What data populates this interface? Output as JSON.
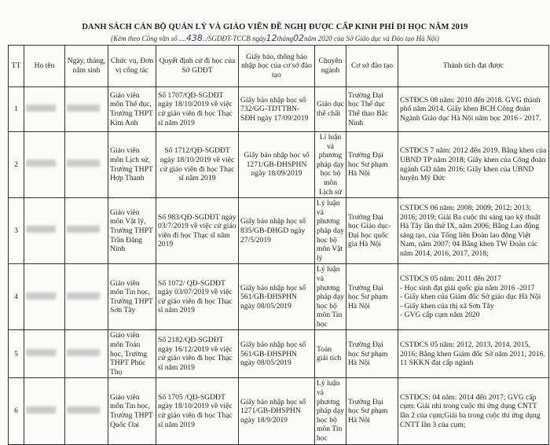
{
  "title": "DANH SÁCH CÁN BỘ QUẢN LÝ VÀ GIÁO VIÊN ĐỀ NGHỊ ĐƯỢC CẤP KINH PHÍ ĐI HỌC NĂM 2019",
  "subtitle": {
    "prefix": "(Kèm theo Công văn số ....",
    "number": "438",
    "mid1": "../SGDĐT-TCCB ngày",
    "day": "12",
    "mid2": "tháng",
    "month": "02",
    "suffix": "năm 2020 của Sở Giáo dục và Đào tạo Hà Nội)"
  },
  "headers": [
    "TT",
    "Họ tên",
    "Ngày, tháng, năm sinh",
    "Chức vụ, Đơn vị công tác",
    "Quyết định cử đi học của Sở GDĐT",
    "Giấy báo, thông báo nhập học của cơ sở đào tạo",
    "Chuyên ngành",
    "Cơ sở đào tạo",
    "Thành tích đạt được"
  ],
  "rows": [
    {
      "tt": "1",
      "position": "Giáo viên môn Thể dục, Trường THPT Kim Anh",
      "decision": "Số 1707/QĐ-SGDĐT ngày 18/10/2019 về việc cử giáo viên đi học Thạc sĩ năm 2019",
      "notice": "Giấy báo nhập học số 732/GG-TDTTBN-SĐH ngày 17/09/2019",
      "major": "Giáo dục thể chất",
      "school": "Trường Đại học Thể dục Thể thao Bắc Ninh",
      "achievements": "CSTĐCS 08 năm: 2010 đến 2018. GVG thành phố năm 2014. Giấy khen BCH Công đoàn Ngành Giáo dục Hà Nội năm học 2016 - 2017."
    },
    {
      "tt": "2",
      "position": "Giáo viên môn Lịch sử, Trường THPT Hợp Thanh",
      "decision": "Số 1712/QĐ-SGDĐT ngày 18/10/2019 về việc cử giáo viên đi học Thạc sĩ năm 2019",
      "notice": "Giấy báo nhập học số 1271/GB-ĐHSPHN ngày 18/09/2019",
      "major": "Lí luận và phương pháp dạy học bộ môn Lịch sử",
      "school": "Trường Đại học Sư phạm Hà Nội",
      "achievements": "CSTĐCS 7 năm: 2012 đến 2019. Bằng khen của UBND TP năm 2018; Giấy khen của Công đoàn ngành GD năm 2016; Giấy khen của UBND huyện Mỹ Đức"
    },
    {
      "tt": "3",
      "position": "Giáo viên môn Vật lý, Trường THPT Trần Đăng Ninh",
      "decision": "Số 983/QĐ-SGDĐT ngày 03/7/2019 về việc cử giáo viên đi học Thạc sĩ năm 2019",
      "notice": "Giấy báo nhập học số 835/GB-ĐHGD ngày 27/5/2019",
      "major": "Lý luận và phương pháp dạy học bộ môn Vật lý",
      "school": "Trường Đại học Giáo dục- Đại học quốc gia Hà Nội",
      "achievements": "CSTĐCS 06 năm: 2008; 2009; 2012; 2013; 2016; 2019; Giải Ba cuộc thi sáng tạo kỹ thuật Hà Tây lần thứ IX, năm 2006; Bằng Lao động sáng tạo, của Tổng liên Đoàn lao động Việt Nam, năm 2007; 04 Bằng khen TW Đoàn các năm 2014, 2016, 2017, 2018;"
    },
    {
      "tt": "4",
      "position": "Giáo viên môn Tin học, Trường THPT Sơn Tây",
      "decision": "Số 1072/ QĐ-SGDĐT ngày 03/07/2019 về việc cử giáo viên đi học Thạc sĩ năm 2019",
      "notice": "Giấy báo nhập học số 561/GB-ĐHSPHN ngày 08/05/2019",
      "major": "Lý luận và phương pháp dạy học bộ môn Tin học",
      "school": "Trường Đại học Sư phạm Hà Nội",
      "achievements": [
        "CSTĐCS 05 năm: 2011 đến 2017",
        "- Học sinh đạt giải quốc gia năm 2016 -2017",
        "- Giấy khen của Giám đốc Sở giáo dục Hà Nội",
        "- Giấy khen của thị xã Sơn Tây",
        "- GVG cấp cụm năm 2020"
      ]
    },
    {
      "tt": "5",
      "position": "Giáo viên môn Toán học, Trường THPT Phúc Thọ",
      "decision": "Số 2182/QĐ-SGDĐT ngày 16/12/2019 về việc cử giáo viên đi học Thạc sĩ năm 2019",
      "notice": "Giấy báo nhập học số 561/GB-ĐHSPHN ngày 08/05/2019",
      "major": "Toán giải tích",
      "school": "Trường Đại học Sư phạm Hà Nội",
      "achievements": "CSTĐCS 05 năm: 2012, 2013, 2014, 2015, 2016; Bằng khen Giám đốc Sở năm 2011, 2016. 11 SKKN đạt cấp ngành"
    },
    {
      "tt": "6",
      "position": "Giáo viên môn Tin học, Trường THPT Quốc Oai",
      "decision": "Số 1705 /QĐ-SGDĐT ngày 18/10/2019 về việc cử giáo viên đi học Thạc sĩ năm 2019",
      "notice": "Giấy báo nhập học số 1271/GB-ĐHSPHN ngày 18/9/2019",
      "major": "Lý luận và phương pháp dạy học bộ môn Tin học",
      "school": "Trường Đại học Sư phạm Hà Nội",
      "achievements": "CSTĐCS: 04 năm: 2014 đến 2017; GVG cấp cụm: Giải nhì trong cuộc thi ứng dụng CNTT lần 2 của cụm;Giải ba trong cuộc thi ứng dụng CNTT lần 3 của cụm;"
    }
  ]
}
